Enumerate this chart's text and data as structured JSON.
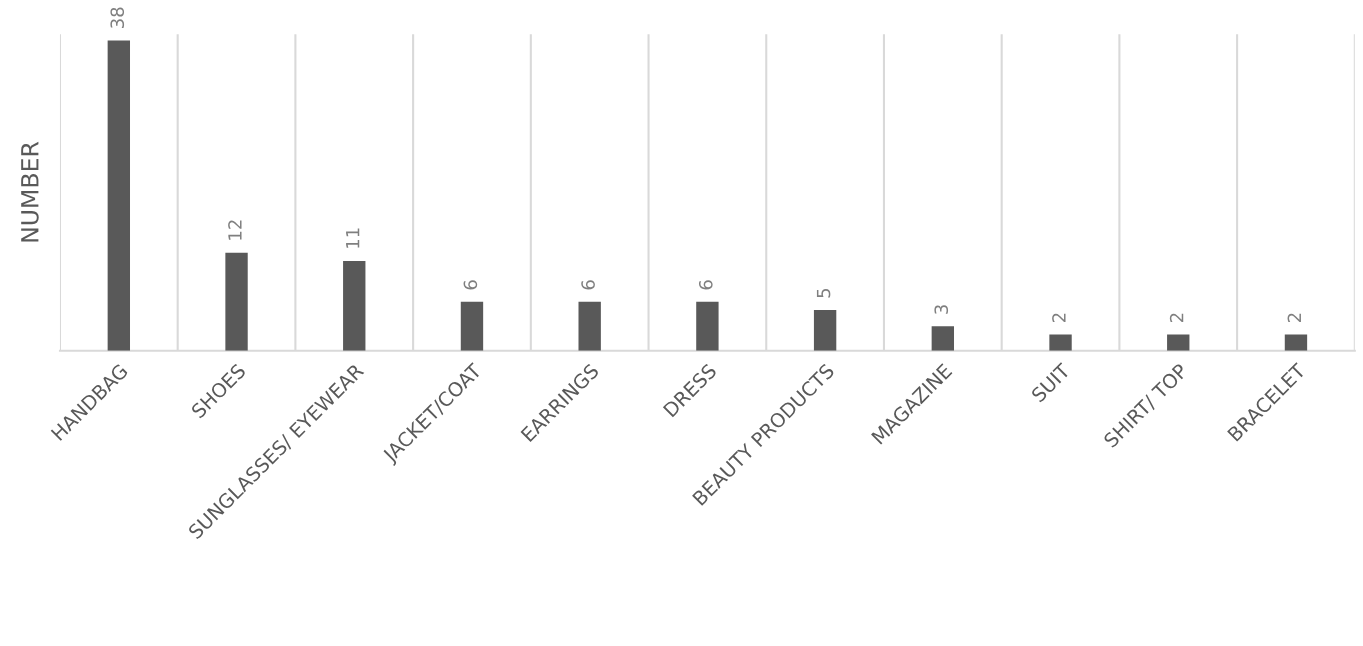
{
  "chart_data": {
    "type": "bar",
    "ylabel": "NUMBER",
    "categories": [
      "HANDBAG",
      "SHOES",
      "SUNGLASSES/ EYEWEAR",
      "JACKET/COAT",
      "EARRINGS",
      "DRESS",
      "BEAUTY PRODUCTS",
      "MAGAZINE",
      "SUIT",
      "SHIRT/ TOP",
      "BRACELET"
    ],
    "values": [
      38,
      12,
      11,
      6,
      6,
      6,
      5,
      3,
      2,
      2,
      2
    ],
    "color": "#595959",
    "data_labels": true,
    "grid": "x"
  }
}
